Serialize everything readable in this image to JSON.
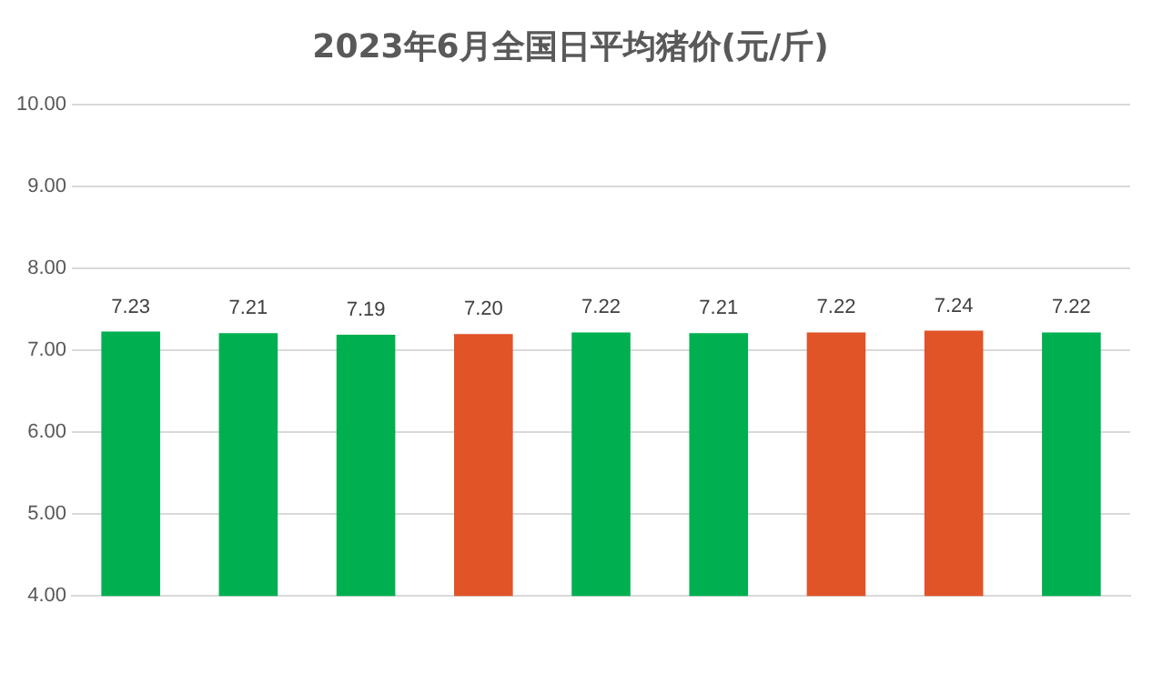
{
  "chart_data": {
    "type": "bar",
    "title": "2023年6月全国日平均猪价(元/斤)",
    "categories": [
      null,
      null,
      null,
      null,
      null,
      null,
      null,
      null,
      null
    ],
    "values": [
      7.23,
      7.21,
      7.19,
      7.2,
      7.22,
      7.21,
      7.22,
      7.24,
      7.22
    ],
    "colors": [
      "#00b050",
      "#00b050",
      "#00b050",
      "#e05428",
      "#00b050",
      "#00b050",
      "#e05428",
      "#e05428",
      "#00b050"
    ],
    "value_labels": [
      "7.23",
      "7.21",
      "7.19",
      "7.20",
      "7.22",
      "7.21",
      "7.22",
      "7.24",
      "7.22"
    ],
    "ylim": [
      4,
      10
    ],
    "yticks": [
      {
        "value": 4,
        "label": "4.00"
      },
      {
        "value": 5,
        "label": "5.00"
      },
      {
        "value": 6,
        "label": "6.00"
      },
      {
        "value": 7,
        "label": "7.00"
      },
      {
        "value": 8,
        "label": "8.00"
      },
      {
        "value": 9,
        "label": "9.00"
      },
      {
        "value": 10,
        "label": "10.00"
      }
    ],
    "grid": "y",
    "legend": false
  }
}
